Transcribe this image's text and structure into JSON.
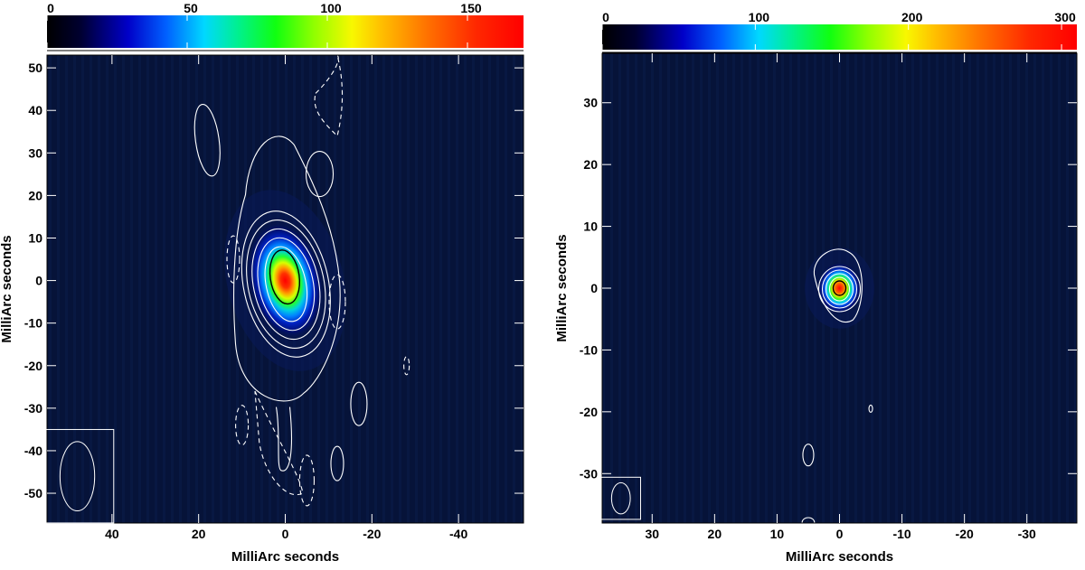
{
  "chart_data": [
    {
      "type": "heatmap",
      "xlabel": "MilliArc seconds",
      "ylabel": "MilliArc seconds",
      "xlim": [
        55,
        -55
      ],
      "ylim": [
        -57,
        53
      ],
      "x_ticks": [
        40,
        20,
        0,
        -20,
        -40
      ],
      "x_tick_labels": [
        "40",
        "20",
        "0",
        "-20",
        "-40"
      ],
      "y_ticks": [
        50,
        40,
        30,
        20,
        10,
        0,
        -10,
        -20,
        -30,
        -40,
        -50
      ],
      "y_tick_labels": [
        "50",
        "40",
        "30",
        "20",
        "10",
        "0",
        "-10",
        "-20",
        "-30",
        "-40",
        "-50"
      ],
      "colorbar": {
        "range": [
          0,
          170
        ],
        "ticks": [
          0,
          50,
          100,
          150
        ],
        "tick_labels": [
          "0",
          "50",
          "100",
          "150"
        ],
        "colormap": "rainbow (black-blue-cyan-green-yellow-orange-red)"
      },
      "peak": {
        "x": 0,
        "y": 0,
        "value": 165
      },
      "beam": {
        "x": 48,
        "y": -46,
        "width_mas": 8,
        "height_mas": 16
      }
    },
    {
      "type": "heatmap",
      "xlabel": "MilliArc seconds",
      "ylabel": "MilliArc seconds",
      "xlim": [
        38,
        -38
      ],
      "ylim": [
        -38,
        38
      ],
      "x_ticks": [
        30,
        20,
        10,
        0,
        -10,
        -20,
        -30
      ],
      "x_tick_labels": [
        "30",
        "20",
        "10",
        "0",
        "-10",
        "-20",
        "-30"
      ],
      "y_ticks": [
        30,
        20,
        10,
        0,
        -10,
        -20,
        -30
      ],
      "y_tick_labels": [
        "30",
        "20",
        "10",
        "0",
        "-10",
        "-20",
        "-30"
      ],
      "colorbar": {
        "range": [
          0,
          310
        ],
        "ticks": [
          0,
          100,
          200,
          300
        ],
        "tick_labels": [
          "0",
          "100",
          "200",
          "300"
        ],
        "colormap": "rainbow (black-blue-cyan-green-yellow-orange-red)"
      },
      "peak": {
        "x": 0,
        "y": 0,
        "value": 310
      },
      "beam": {
        "x": 35,
        "y": -34,
        "width_mas": 3,
        "height_mas": 5
      }
    }
  ]
}
